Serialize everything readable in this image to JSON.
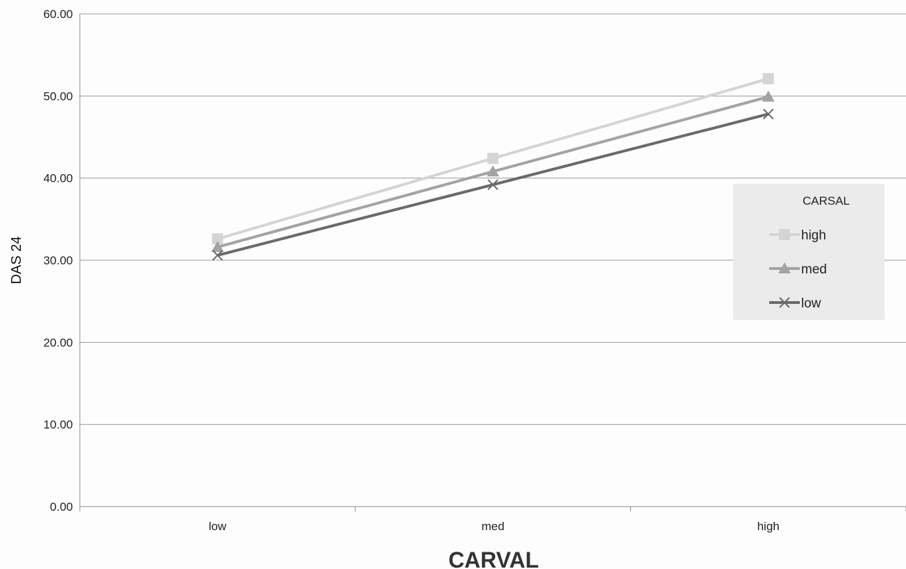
{
  "chart_data": {
    "type": "line",
    "title": "",
    "xlabel": "CARVAL",
    "ylabel": "DAS 24",
    "categories": [
      "low",
      "med",
      "high"
    ],
    "ylim": [
      0,
      60
    ],
    "yticks": [
      "0.00",
      "10.00",
      "20.00",
      "30.00",
      "40.00",
      "50.00",
      "60.00"
    ],
    "grid": true,
    "legend": {
      "title": "CARSAL",
      "placement": "right"
    },
    "series": [
      {
        "name": "high",
        "values": [
          32.6,
          42.4,
          52.1
        ],
        "color": "#d4d4d4",
        "marker": "square"
      },
      {
        "name": "med",
        "values": [
          31.6,
          40.8,
          49.9
        ],
        "color": "#a3a3a3",
        "marker": "triangle"
      },
      {
        "name": "low",
        "values": [
          30.6,
          39.2,
          47.8
        ],
        "color": "#6a6a6a",
        "marker": "x"
      }
    ]
  }
}
